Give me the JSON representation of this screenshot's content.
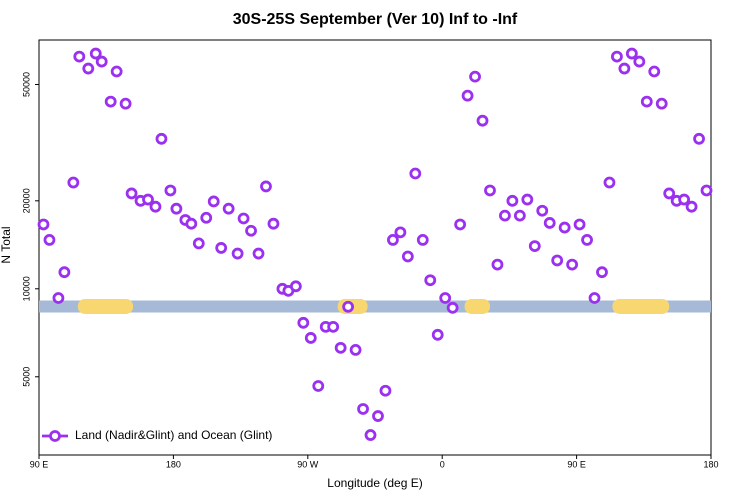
{
  "chart_data": {
    "type": "scatter",
    "title": "30S-25S September (Ver 10)   Inf to -Inf",
    "x_label": "Longitude (deg E)",
    "y_label": "N Total",
    "xlim": [
      90,
      540
    ],
    "xticks": [
      {
        "value": 90,
        "label": "90 E"
      },
      {
        "value": 180,
        "label": "180"
      },
      {
        "value": 270,
        "label": "90 W"
      },
      {
        "value": 360,
        "label": "0"
      },
      {
        "value": 450,
        "label": "90 E"
      },
      {
        "value": 540,
        "label": "180"
      }
    ],
    "ylim": [
      2700,
      71000
    ],
    "yticks": [
      5000,
      10000,
      20000,
      50000
    ],
    "log_y": true,
    "legend": "bottom-left",
    "band": {
      "value": 8700,
      "color": "#a6b9d6",
      "highlight_color": "#f8d770",
      "highlights": [
        [
          116,
          153
        ],
        [
          290,
          310
        ],
        [
          375,
          392
        ],
        [
          474,
          512
        ]
      ]
    },
    "x": [
      93,
      97,
      103,
      107,
      113,
      117,
      123,
      128,
      132,
      138,
      142,
      148,
      152,
      158,
      163,
      168,
      172,
      178,
      182,
      188,
      192,
      197,
      202,
      207,
      212,
      217,
      223,
      227,
      232,
      237,
      242,
      247,
      253,
      257,
      262,
      267,
      272,
      277,
      282,
      287,
      292,
      297,
      302,
      307,
      312,
      317,
      322,
      327,
      332,
      337,
      342,
      347,
      352,
      357,
      362,
      367,
      372,
      377,
      382,
      387,
      392,
      397,
      402,
      407,
      412,
      417,
      422,
      427,
      432,
      437,
      442,
      447,
      452,
      457,
      462,
      467,
      472,
      477,
      482,
      487,
      492,
      497,
      502,
      507,
      512,
      517,
      522,
      527,
      532,
      537
    ],
    "series": [
      {
        "name": "Land (Nadir&Glint) and Ocean (Glint)",
        "color": "#9b30f0",
        "values": [
          16600,
          14700,
          9300,
          11400,
          23100,
          62300,
          56700,
          63800,
          59900,
          43700,
          55400,
          43000,
          21200,
          20000,
          20200,
          19100,
          32600,
          21700,
          18800,
          17200,
          16700,
          14300,
          17500,
          19900,
          13800,
          18800,
          13200,
          17400,
          15800,
          13200,
          22400,
          16700,
          10000,
          9840,
          10200,
          7650,
          6790,
          4650,
          7410,
          7410,
          6280,
          8680,
          6180,
          3880,
          3160,
          3670,
          4480,
          14700,
          15600,
          12900,
          24800,
          14700,
          10700,
          6960,
          9300,
          8610,
          16600,
          45800,
          53200,
          37600,
          21700,
          12100,
          17800,
          20000,
          17800,
          20200,
          14000,
          18500,
          16800,
          12500,
          16200,
          12100,
          16600,
          14700,
          9300,
          11400,
          23100,
          62300,
          56700,
          63800,
          59900,
          43700,
          55400,
          43000,
          21200,
          20000,
          20200,
          19100,
          32600,
          21700
        ]
      }
    ]
  }
}
